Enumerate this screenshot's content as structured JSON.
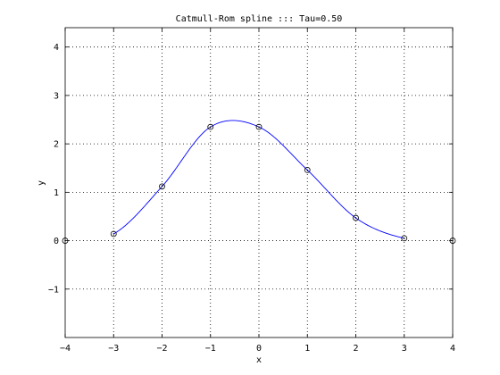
{
  "chart_data": {
    "type": "line",
    "title": "Catmull-Rom spline ::: Tau=0.50",
    "xlabel": "x",
    "ylabel": "y",
    "xlim": [
      -4,
      4
    ],
    "ylim": [
      -2,
      4.4
    ],
    "xticks": [
      -4,
      -3,
      -2,
      -1,
      0,
      1,
      2,
      3,
      4
    ],
    "yticks": [
      -1,
      0,
      1,
      2,
      3,
      4
    ],
    "grid": true,
    "legend": "none",
    "tau": 0.5,
    "series": [
      {
        "role": "control-points",
        "marker": "circle",
        "color": "#000000",
        "x": [
          -4,
          -3,
          -2,
          -1,
          0,
          1,
          2,
          3,
          4
        ],
        "y": [
          0,
          0.14,
          1.12,
          2.35,
          2.35,
          1.46,
          0.47,
          0.05,
          0
        ]
      },
      {
        "role": "spline",
        "color": "#0000ff",
        "x": [
          -3,
          -2,
          -1,
          0,
          1,
          2,
          3
        ],
        "y": [
          0.14,
          1.12,
          2.35,
          2.35,
          1.46,
          0.47,
          0.05
        ]
      }
    ]
  }
}
